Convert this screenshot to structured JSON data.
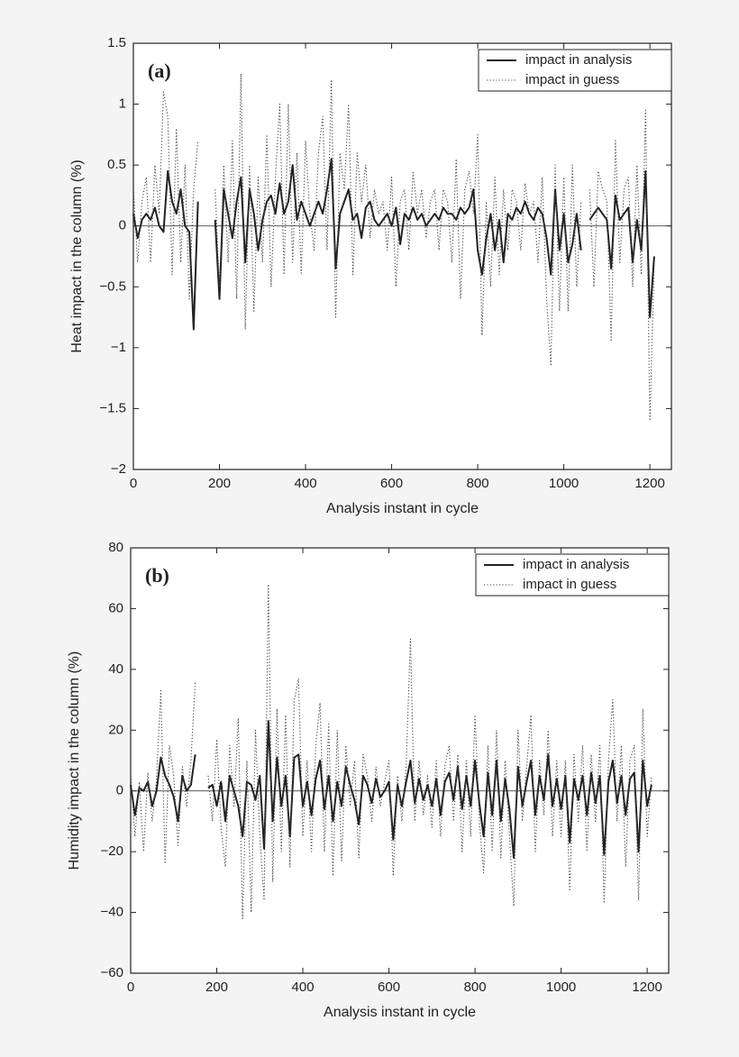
{
  "chart_data": [
    {
      "type": "line",
      "panel_label": "(a)",
      "xlabel": "Analysis instant in cycle",
      "ylabel": "Heat impact in the column (%)",
      "x": [
        0,
        10,
        20,
        30,
        40,
        50,
        60,
        70,
        80,
        90,
        100,
        110,
        120,
        130,
        140,
        150,
        160,
        170,
        180,
        190,
        200,
        210,
        220,
        230,
        240,
        250,
        260,
        270,
        280,
        290,
        300,
        310,
        320,
        330,
        340,
        350,
        360,
        370,
        380,
        390,
        400,
        410,
        420,
        430,
        440,
        450,
        460,
        470,
        480,
        490,
        500,
        510,
        520,
        530,
        540,
        550,
        560,
        570,
        580,
        590,
        600,
        610,
        620,
        630,
        640,
        650,
        660,
        670,
        680,
        690,
        700,
        710,
        720,
        730,
        740,
        750,
        760,
        770,
        780,
        790,
        800,
        810,
        820,
        830,
        840,
        850,
        860,
        870,
        880,
        890,
        900,
        910,
        920,
        930,
        940,
        950,
        960,
        970,
        980,
        990,
        1000,
        1010,
        1020,
        1030,
        1040,
        1050,
        1060,
        1070,
        1080,
        1090,
        1100,
        1110,
        1120,
        1130,
        1140,
        1150,
        1160,
        1170,
        1180,
        1190,
        1200,
        1210
      ],
      "series": [
        {
          "name": "impact in analysis",
          "color": "#222222",
          "style": "solid",
          "values": [
            0.1,
            -0.1,
            0.05,
            0.1,
            0.05,
            0.15,
            0,
            -0.05,
            0.45,
            0.2,
            0.1,
            0.3,
            0,
            -0.05,
            -0.85,
            0.2,
            null,
            null,
            null,
            0.05,
            -0.6,
            0.3,
            0.1,
            -0.1,
            0.2,
            0.4,
            -0.3,
            0.3,
            0.1,
            -0.2,
            0.05,
            0.2,
            0.25,
            0.1,
            0.35,
            0.1,
            0.2,
            0.5,
            0.05,
            0.2,
            0.1,
            0,
            0.1,
            0.2,
            0.1,
            0.3,
            0.55,
            -0.35,
            0.1,
            0.2,
            0.3,
            0.05,
            0.1,
            -0.1,
            0.15,
            0.2,
            0.05,
            0,
            0.05,
            0.1,
            0,
            0.15,
            -0.15,
            0.1,
            0.05,
            0.15,
            0.05,
            0.1,
            0,
            0.05,
            0.1,
            0.05,
            0.15,
            0.1,
            0.1,
            0.05,
            0.15,
            0.1,
            0.15,
            0.3,
            -0.2,
            -0.4,
            -0.1,
            0.1,
            -0.2,
            0.05,
            -0.3,
            0.1,
            0.05,
            0.15,
            0.1,
            0.2,
            0.1,
            0.05,
            0.15,
            0.1,
            -0.1,
            -0.4,
            0.3,
            -0.2,
            0.1,
            -0.3,
            -0.15,
            0.1,
            -0.2,
            null,
            0.05,
            0.1,
            0.15,
            0.1,
            0.05,
            -0.35,
            0.25,
            0.05,
            0.1,
            0.15,
            -0.3,
            0.05,
            -0.2,
            0.45,
            -0.75,
            -0.25
          ]
        },
        {
          "name": "impact in guess",
          "color": "#444444",
          "style": "dotted",
          "values": [
            0.3,
            -0.3,
            0.2,
            0.4,
            -0.3,
            0.5,
            0.1,
            1.1,
            0.9,
            -0.4,
            0.8,
            -0.3,
            0.5,
            -0.6,
            0.3,
            0.7,
            null,
            null,
            null,
            0.3,
            -0.5,
            0.5,
            -0.3,
            0.7,
            -0.6,
            1.25,
            -0.85,
            0.5,
            -0.7,
            0.4,
            -0.3,
            0.75,
            -0.5,
            0.4,
            1.0,
            -0.4,
            1.0,
            -0.3,
            0.6,
            -0.4,
            0.7,
            0.1,
            -0.2,
            0.6,
            0.9,
            -0.2,
            1.2,
            -0.75,
            0.6,
            0.3,
            1.0,
            -0.4,
            0.6,
            0.2,
            0.5,
            -0.1,
            0.3,
            0.1,
            0.2,
            -0.2,
            0.4,
            -0.5,
            0.2,
            0.3,
            -0.2,
            0.45,
            0.1,
            0.3,
            -0.1,
            0.2,
            0.3,
            -0.2,
            0.3,
            0.2,
            -0.3,
            0.55,
            -0.6,
            0.3,
            0.45,
            0.1,
            0.75,
            -0.9,
            0.2,
            -0.5,
            0.4,
            -0.4,
            0.3,
            -0.2,
            0.3,
            0.2,
            -0.2,
            0.35,
            0.1,
            0.2,
            -0.3,
            0.4,
            -0.6,
            -1.15,
            0.5,
            -0.7,
            0.4,
            -0.7,
            0.5,
            -0.5,
            0.2,
            null,
            0.3,
            -0.5,
            0.45,
            0.3,
            0.2,
            -0.95,
            0.7,
            -0.3,
            0.3,
            0.4,
            -0.5,
            0.5,
            -0.4,
            0.95,
            -1.6,
            -0.3
          ]
        }
      ],
      "xlim": [
        0,
        1250
      ],
      "ylim": [
        -2,
        1.5
      ],
      "xticks": [
        0,
        200,
        400,
        600,
        800,
        1000,
        1200
      ],
      "yticks": [
        {
          "value": -2,
          "label": "−2"
        },
        {
          "value": -1.5,
          "label": "−1.5"
        },
        {
          "value": -1,
          "label": "−1"
        },
        {
          "value": -0.5,
          "label": "−0.5"
        },
        0,
        0.5,
        1,
        1.5
      ],
      "hline": 0,
      "legend": "upper right"
    },
    {
      "type": "line",
      "panel_label": "(b)",
      "xlabel": "Analysis instant in cycle",
      "ylabel": "Humidity impact in the column (%)",
      "x": [
        0,
        10,
        20,
        30,
        40,
        50,
        60,
        70,
        80,
        90,
        100,
        110,
        120,
        130,
        140,
        150,
        160,
        170,
        180,
        190,
        200,
        210,
        220,
        230,
        240,
        250,
        260,
        270,
        280,
        290,
        300,
        310,
        320,
        330,
        340,
        350,
        360,
        370,
        380,
        390,
        400,
        410,
        420,
        430,
        440,
        450,
        460,
        470,
        480,
        490,
        500,
        510,
        520,
        530,
        540,
        550,
        560,
        570,
        580,
        590,
        600,
        610,
        620,
        630,
        640,
        650,
        660,
        670,
        680,
        690,
        700,
        710,
        720,
        730,
        740,
        750,
        760,
        770,
        780,
        790,
        800,
        810,
        820,
        830,
        840,
        850,
        860,
        870,
        880,
        890,
        900,
        910,
        920,
        930,
        940,
        950,
        960,
        970,
        980,
        990,
        1000,
        1010,
        1020,
        1030,
        1040,
        1050,
        1060,
        1070,
        1080,
        1090,
        1100,
        1110,
        1120,
        1130,
        1140,
        1150,
        1160,
        1170,
        1180,
        1190,
        1200,
        1210
      ],
      "series": [
        {
          "name": "impact in analysis",
          "color": "#222222",
          "style": "solid",
          "values": [
            2,
            -8,
            1,
            0,
            3,
            -5,
            0,
            11,
            5,
            2,
            -2,
            -10,
            5,
            0,
            2,
            12,
            null,
            null,
            1,
            2,
            -5,
            3,
            -10,
            5,
            0,
            -5,
            -15,
            3,
            2,
            -3,
            5,
            -19,
            23,
            -10,
            11,
            -5,
            5,
            -15,
            11,
            12,
            -5,
            3,
            -8,
            4,
            10,
            -6,
            5,
            -10,
            3,
            -5,
            8,
            2,
            -3,
            -11,
            5,
            2,
            -4,
            4,
            -2,
            0,
            3,
            -16,
            2,
            -5,
            3,
            10,
            -4,
            4,
            -3,
            2,
            -5,
            4,
            -8,
            3,
            6,
            -3,
            8,
            -6,
            5,
            -5,
            10,
            -4,
            -15,
            6,
            -8,
            10,
            -10,
            4,
            -6,
            -22,
            8,
            -5,
            3,
            10,
            -8,
            5,
            -3,
            12,
            -5,
            4,
            -6,
            5,
            -17,
            4,
            -3,
            5,
            -8,
            6,
            -4,
            5,
            -21,
            3,
            10,
            -4,
            5,
            -8,
            4,
            6,
            -20,
            10,
            -5,
            2
          ]
        },
        {
          "name": "impact in guess",
          "color": "#444444",
          "style": "dotted",
          "values": [
            5,
            -15,
            3,
            -20,
            6,
            -10,
            4,
            33,
            -24,
            15,
            5,
            -18,
            8,
            -5,
            10,
            36,
            null,
            null,
            5,
            -10,
            17,
            -12,
            -25,
            15,
            -5,
            24,
            -42,
            10,
            -40,
            20,
            -15,
            -36,
            68,
            -30,
            27,
            -20,
            25,
            -25,
            30,
            37,
            -15,
            10,
            -20,
            15,
            29,
            -20,
            22,
            -28,
            20,
            -23,
            15,
            -5,
            10,
            -22,
            12,
            5,
            -10,
            8,
            -5,
            3,
            10,
            -28,
            5,
            -10,
            8,
            50,
            -10,
            10,
            -8,
            5,
            -12,
            10,
            -15,
            8,
            15,
            -10,
            12,
            -20,
            10,
            -15,
            25,
            -10,
            -27,
            15,
            -20,
            20,
            -22,
            10,
            -15,
            -38,
            20,
            -10,
            8,
            25,
            -20,
            10,
            -8,
            20,
            -15,
            10,
            -15,
            10,
            -33,
            12,
            -10,
            15,
            -20,
            12,
            -10,
            15,
            -37,
            10,
            30,
            -10,
            15,
            -25,
            10,
            15,
            -36,
            27,
            -15,
            5
          ]
        }
      ],
      "xlim": [
        0,
        1250
      ],
      "ylim": [
        -60,
        80
      ],
      "xticks": [
        0,
        200,
        400,
        600,
        800,
        1000,
        1200
      ],
      "yticks": [
        {
          "value": -60,
          "label": "−60"
        },
        {
          "value": -40,
          "label": "−40"
        },
        {
          "value": -20,
          "label": "−20"
        },
        0,
        20,
        40,
        60,
        80
      ],
      "hline": 0,
      "legend": "upper right"
    }
  ]
}
